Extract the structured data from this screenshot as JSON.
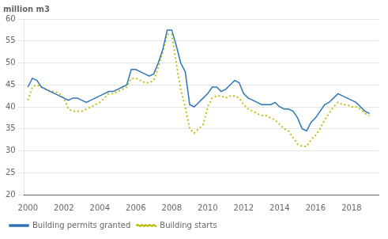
{
  "chart_data": {
    "type": "line",
    "title": "million m3",
    "x": [
      2000,
      2000.25,
      2000.5,
      2000.75,
      2001,
      2001.25,
      2001.5,
      2001.75,
      2002,
      2002.25,
      2002.5,
      2002.75,
      2003,
      2003.25,
      2003.5,
      2003.75,
      2004,
      2004.25,
      2004.5,
      2004.75,
      2005,
      2005.25,
      2005.5,
      2005.75,
      2006,
      2006.25,
      2006.5,
      2006.75,
      2007,
      2007.25,
      2007.5,
      2007.75,
      2008,
      2008.25,
      2008.5,
      2008.75,
      2009,
      2009.25,
      2009.5,
      2009.75,
      2010,
      2010.25,
      2010.5,
      2010.75,
      2011,
      2011.25,
      2011.5,
      2011.75,
      2012,
      2012.25,
      2012.5,
      2012.75,
      2013,
      2013.25,
      2013.5,
      2013.75,
      2014,
      2014.25,
      2014.5,
      2014.75,
      2015,
      2015.25,
      2015.5,
      2015.75,
      2016,
      2016.25,
      2016.5,
      2016.75,
      2017,
      2017.25,
      2017.5,
      2017.75,
      2018,
      2018.25,
      2018.5,
      2018.75,
      2019
    ],
    "series": [
      {
        "name": "Building permits granted",
        "color": "#2E75B6",
        "line_style": "solid",
        "values": [
          44.5,
          46.5,
          46.0,
          44.5,
          44.0,
          43.5,
          43.0,
          42.5,
          42.0,
          41.5,
          42.0,
          42.0,
          41.5,
          41.0,
          41.5,
          42.0,
          42.5,
          43.0,
          43.5,
          43.5,
          44.0,
          44.5,
          45.0,
          48.5,
          48.5,
          48.0,
          47.5,
          47.0,
          47.5,
          50.0,
          53.0,
          57.5,
          57.5,
          54.0,
          50.0,
          48.0,
          40.5,
          40.0,
          41.0,
          42.0,
          43.0,
          44.5,
          44.5,
          43.5,
          44.0,
          45.0,
          46.0,
          45.5,
          43.0,
          42.0,
          41.5,
          41.0,
          40.5,
          40.5,
          40.5,
          41.0,
          40.0,
          39.5,
          39.5,
          39.0,
          37.5,
          35.0,
          34.5,
          36.5,
          37.5,
          39.0,
          40.5,
          41.0,
          42.0,
          43.0,
          42.5,
          42.0,
          41.5,
          41.0,
          40.0,
          39.0,
          38.5
        ]
      },
      {
        "name": "Building starts",
        "color": "#BFBF10",
        "line_style": "dotted",
        "values": [
          41.5,
          44.5,
          45.0,
          44.5,
          44.0,
          43.5,
          43.5,
          43.0,
          42.0,
          39.5,
          39.0,
          39.0,
          39.0,
          39.5,
          40.0,
          40.5,
          41.0,
          42.0,
          43.0,
          43.0,
          43.5,
          44.0,
          44.5,
          46.5,
          46.5,
          46.0,
          45.5,
          45.5,
          46.0,
          49.0,
          52.5,
          56.5,
          56.5,
          50.0,
          44.0,
          40.0,
          35.0,
          34.0,
          35.0,
          36.0,
          40.0,
          42.0,
          42.5,
          42.5,
          42.0,
          42.5,
          42.5,
          42.0,
          40.5,
          39.5,
          39.0,
          38.5,
          38.0,
          38.0,
          37.5,
          37.0,
          36.0,
          35.0,
          34.5,
          33.0,
          31.5,
          31.0,
          31.0,
          32.5,
          33.5,
          35.0,
          37.0,
          38.5,
          40.0,
          41.0,
          40.5,
          40.5,
          40.0,
          40.0,
          39.5,
          38.5,
          38.0
        ]
      }
    ],
    "xlim": [
      1999.8,
      2019.5
    ],
    "xticks": [
      2000,
      2002,
      2004,
      2006,
      2008,
      2010,
      2012,
      2014,
      2016,
      2018
    ],
    "ylim": [
      20,
      60
    ],
    "yticks": [
      20,
      25,
      30,
      35,
      40,
      45,
      50,
      55,
      60
    ],
    "grid": "y",
    "legend": "lower left"
  }
}
